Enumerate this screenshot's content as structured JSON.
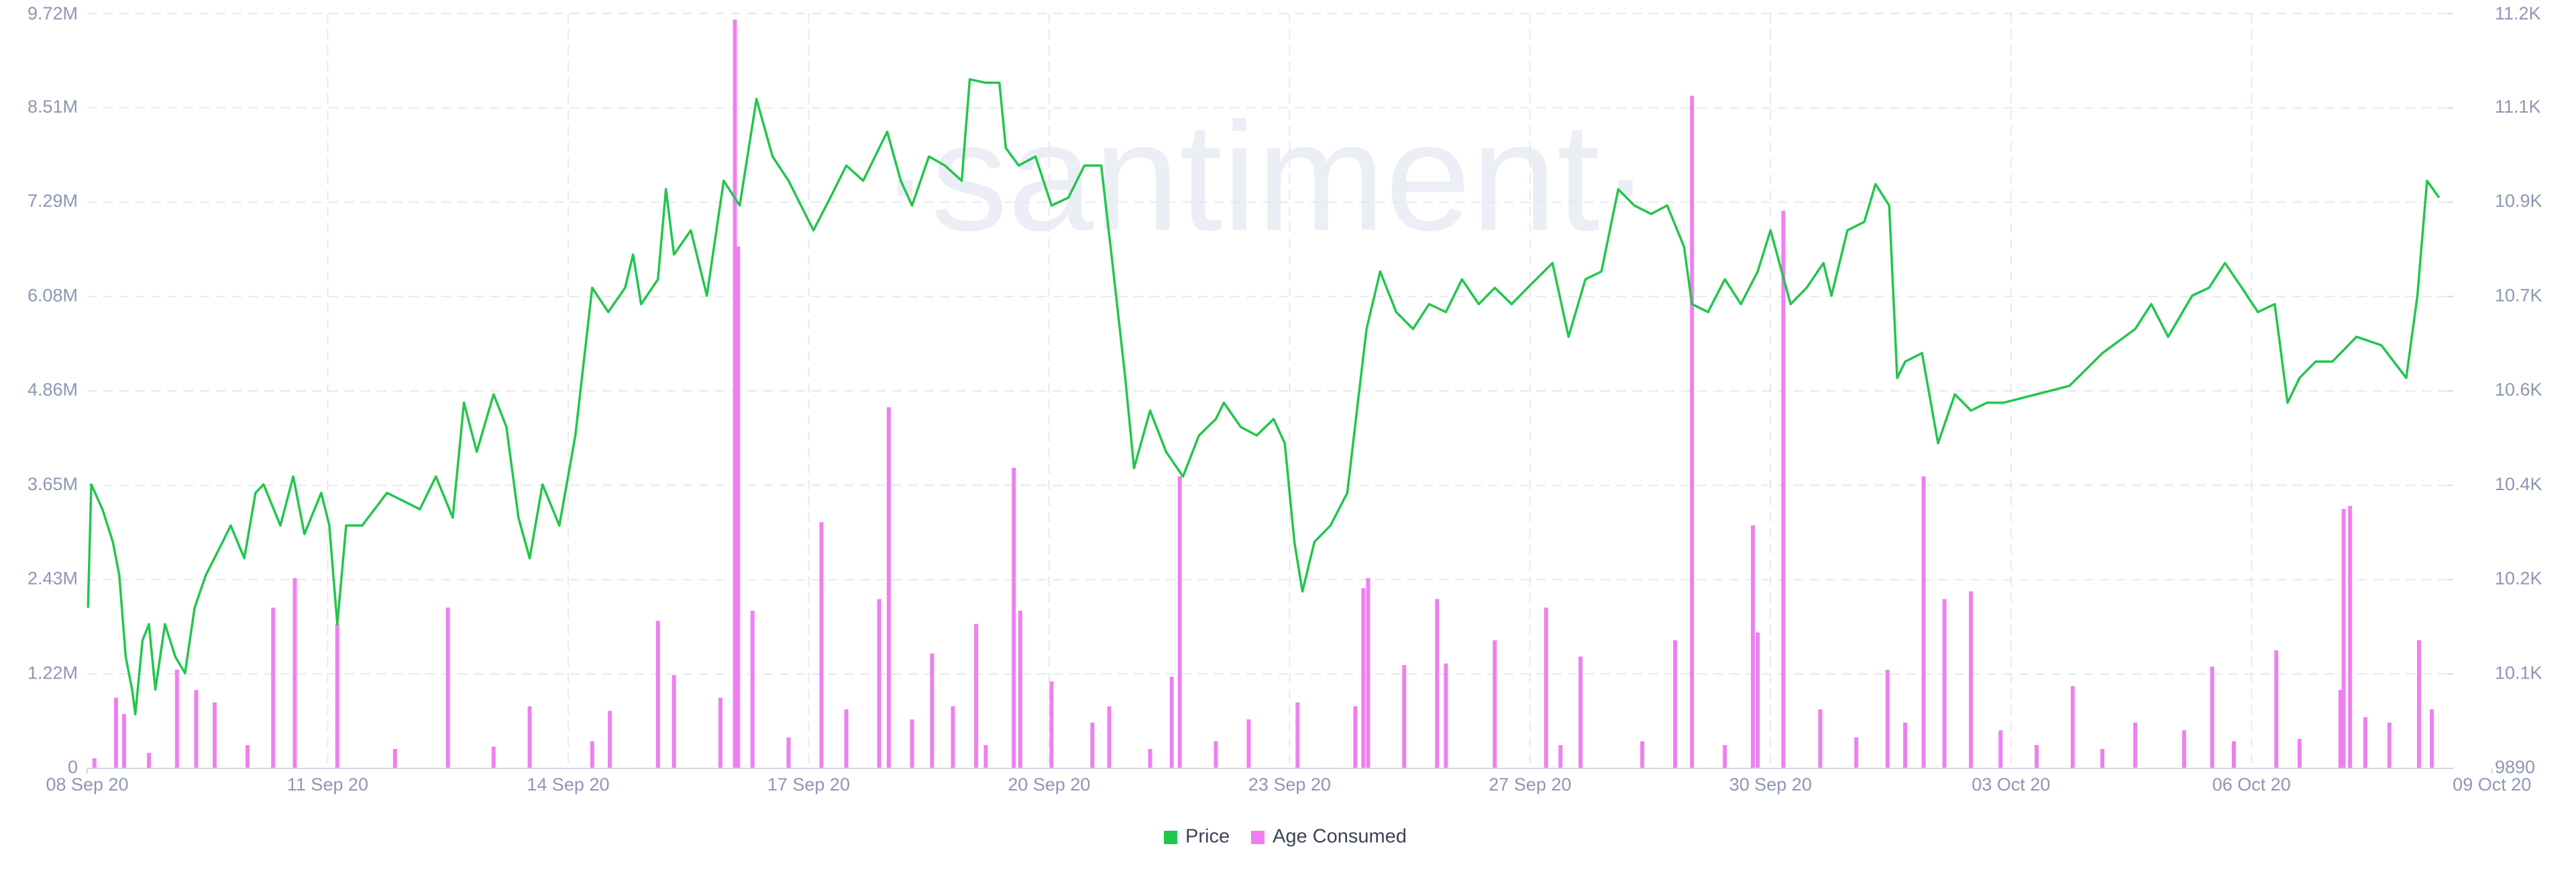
{
  "chart_data": {
    "type": "line",
    "watermark": "·santiment·",
    "grid": true,
    "legend": "bottom",
    "xlim": [
      8,
      37.45
    ],
    "xticks": [
      {
        "value": 8,
        "label": "08 Sep 20"
      },
      {
        "value": 11,
        "label": "11 Sep 20"
      },
      {
        "value": 14,
        "label": "14 Sep 20"
      },
      {
        "value": 17,
        "label": "17 Sep 20"
      },
      {
        "value": 20,
        "label": "20 Sep 20"
      },
      {
        "value": 23,
        "label": "23 Sep 20"
      },
      {
        "value": 26,
        "label": "27 Sep 20"
      },
      {
        "value": 29,
        "label": "30 Sep 20"
      },
      {
        "value": 32,
        "label": "03 Oct 20"
      },
      {
        "value": 35,
        "label": "06 Oct 20"
      },
      {
        "value": 38,
        "label": "09 Oct 20"
      }
    ],
    "ylim": [
      0,
      9720000
    ],
    "yticks": [
      0,
      {
        "value": 1215000,
        "label": "1.22M"
      },
      {
        "value": 2430000,
        "label": "2.43M"
      },
      {
        "value": 3645000,
        "label": "3.65M"
      },
      {
        "value": 4860000,
        "label": "4.86M"
      },
      {
        "value": 6075000,
        "label": "6.08M"
      },
      {
        "value": 7290000,
        "label": "7.29M"
      },
      {
        "value": 8505000,
        "label": "8.51M"
      },
      {
        "value": 9720000,
        "label": "9.72M"
      }
    ],
    "y2lim": [
      9890,
      11230
    ],
    "y2ticks": [
      9890,
      {
        "value": 10057.5,
        "label": "10.1K"
      },
      {
        "value": 10225,
        "label": "10.2K"
      },
      {
        "value": 10392.5,
        "label": "10.4K"
      },
      {
        "value": 10560,
        "label": "10.6K"
      },
      {
        "value": 10727.5,
        "label": "10.7K"
      },
      {
        "value": 10895,
        "label": "10.9K"
      },
      {
        "value": 11062.5,
        "label": "11.1K"
      },
      {
        "value": 11230,
        "label": "11.2K"
      }
    ],
    "series": [
      {
        "name": "Price",
        "type": "line",
        "axis": "y2",
        "color": "#22c64c",
        "x": [
          8.01,
          8.05,
          8.19,
          8.32,
          8.4,
          8.48,
          8.56,
          8.6,
          8.69,
          8.77,
          8.85,
          8.97,
          9.1,
          9.22,
          9.34,
          9.48,
          9.69,
          9.79,
          9.96,
          10.1,
          10.2,
          10.41,
          10.57,
          10.71,
          10.92,
          11.02,
          11.12,
          11.23,
          11.43,
          11.74,
          11.94,
          12.15,
          12.35,
          12.56,
          12.7,
          12.86,
          13.07,
          13.23,
          13.38,
          13.52,
          13.68,
          13.89,
          14.09,
          14.3,
          14.5,
          14.71,
          14.81,
          14.91,
          15.12,
          15.22,
          15.32,
          15.53,
          15.73,
          15.94,
          16.14,
          16.35,
          16.55,
          16.75,
          17.06,
          17.27,
          17.47,
          17.68,
          17.98,
          18.15,
          18.29,
          18.5,
          18.7,
          18.91,
          19.01,
          19.21,
          19.38,
          19.46,
          19.62,
          19.83,
          20.03,
          20.24,
          20.44,
          20.65,
          20.79,
          20.95,
          21.06,
          21.26,
          21.46,
          21.67,
          21.87,
          22.08,
          22.18,
          22.39,
          22.59,
          22.8,
          22.94,
          23.06,
          23.16,
          23.31,
          23.51,
          23.72,
          23.84,
          23.96,
          24.13,
          24.33,
          24.54,
          24.74,
          24.95,
          25.15,
          25.36,
          25.56,
          25.77,
          25.97,
          26.28,
          26.48,
          26.69,
          26.89,
          27.1,
          27.3,
          27.51,
          27.71,
          27.92,
          28.02,
          28.22,
          28.43,
          28.63,
          28.84,
          29.0,
          29.25,
          29.45,
          29.66,
          29.76,
          29.96,
          30.17,
          30.31,
          30.48,
          30.58,
          30.68,
          30.89,
          31.09,
          31.3,
          31.5,
          31.7,
          31.91,
          32.32,
          32.73,
          33.14,
          33.55,
          33.75,
          33.96,
          34.26,
          34.47,
          34.67,
          34.88,
          35.08,
          35.29,
          35.45,
          35.6,
          35.8,
          36.01,
          36.31,
          36.62,
          36.93,
          37.07,
          37.19,
          37.34
        ],
        "values": [
          10175,
          10394,
          10350,
          10292,
          10233,
          10088,
          10030,
          9986,
          10117,
          10146,
          10030,
          10146,
          10088,
          10059,
          10175,
          10233,
          10292,
          10321,
          10263,
          10379,
          10394,
          10321,
          10408,
          10306,
          10379,
          10321,
          10146,
          10321,
          10321,
          10379,
          10365,
          10350,
          10408,
          10335,
          10539,
          10452,
          10554,
          10496,
          10335,
          10263,
          10394,
          10321,
          10481,
          10743,
          10700,
          10743,
          10802,
          10714,
          10758,
          10918,
          10802,
          10845,
          10729,
          10933,
          10889,
          11078,
          10976,
          10933,
          10845,
          10903,
          10960,
          10933,
          11020,
          10933,
          10889,
          10976,
          10960,
          10933,
          11113,
          11107,
          11107,
          10991,
          10960,
          10976,
          10889,
          10903,
          10960,
          10960,
          10787,
          10583,
          10423,
          10525,
          10452,
          10408,
          10481,
          10510,
          10539,
          10496,
          10481,
          10510,
          10467,
          10292,
          10204,
          10292,
          10321,
          10379,
          10525,
          10670,
          10772,
          10700,
          10670,
          10714,
          10700,
          10758,
          10714,
          10743,
          10714,
          10743,
          10787,
          10656,
          10758,
          10772,
          10918,
          10889,
          10874,
          10889,
          10816,
          10714,
          10700,
          10758,
          10714,
          10772,
          10845,
          10714,
          10743,
          10787,
          10729,
          10845,
          10860,
          10927,
          10889,
          10583,
          10612,
          10627,
          10467,
          10554,
          10525,
          10539,
          10539,
          10554,
          10569,
          10627,
          10670,
          10714,
          10656,
          10729,
          10743,
          10787,
          10743,
          10700,
          10714,
          10539,
          10583,
          10612,
          10612,
          10656,
          10641,
          10583,
          10729,
          10933,
          10903
        ]
      },
      {
        "name": "Age Consumed",
        "type": "bar",
        "color": "#ef7ff0",
        "x": [
          8.09,
          8.36,
          8.46,
          9.12,
          9.36,
          9.59,
          10.32,
          10.59,
          11.12,
          12.5,
          13.52,
          14.52,
          15.12,
          15.32,
          15.9,
          16.08,
          16.12,
          16.3,
          17.16,
          17.47,
          17.88,
          18.0,
          18.29,
          18.54,
          18.8,
          19.09,
          19.56,
          19.64,
          20.03,
          20.54,
          20.75,
          21.53,
          21.63,
          22.49,
          23.1,
          23.82,
          23.92,
          23.98,
          24.43,
          24.84,
          24.95,
          25.56,
          26.2,
          26.63,
          27.81,
          28.02,
          28.78,
          28.84,
          29.16,
          29.62,
          30.46,
          30.68,
          30.91,
          31.17,
          31.5,
          31.87,
          32.77,
          33.55,
          34.16,
          34.51,
          35.31,
          35.6,
          36.11,
          36.15,
          36.23,
          36.42,
          36.72,
          37.09,
          37.25,
          8.77,
          10.0,
          11.84,
          13.07,
          14.3,
          16.75,
          19.21,
          21.26,
          22.08,
          26.38,
          27.4,
          28.43,
          30.07,
          32.32,
          33.14,
          34.78
        ],
        "values": [
          130000,
          910000,
          700000,
          1270000,
          1010000,
          850000,
          2070000,
          2450000,
          1860000,
          2070000,
          800000,
          740000,
          1900000,
          1200000,
          910000,
          9640000,
          6720000,
          2030000,
          3170000,
          760000,
          2180000,
          4650000,
          630000,
          1480000,
          800000,
          1860000,
          3870000,
          2030000,
          1120000,
          590000,
          800000,
          1180000,
          3760000,
          630000,
          850000,
          800000,
          2320000,
          2450000,
          1330000,
          2180000,
          1350000,
          1650000,
          2070000,
          1440000,
          1650000,
          8660000,
          3130000,
          1750000,
          7180000,
          760000,
          1270000,
          590000,
          3760000,
          2180000,
          2280000,
          490000,
          1060000,
          590000,
          490000,
          1310000,
          1520000,
          380000,
          1010000,
          3340000,
          3380000,
          660000,
          590000,
          1650000,
          760000,
          200000,
          300000,
          250000,
          280000,
          350000,
          400000,
          300000,
          250000,
          350000,
          300000,
          350000,
          300000,
          400000,
          300000,
          250000,
          350000
        ]
      }
    ]
  }
}
